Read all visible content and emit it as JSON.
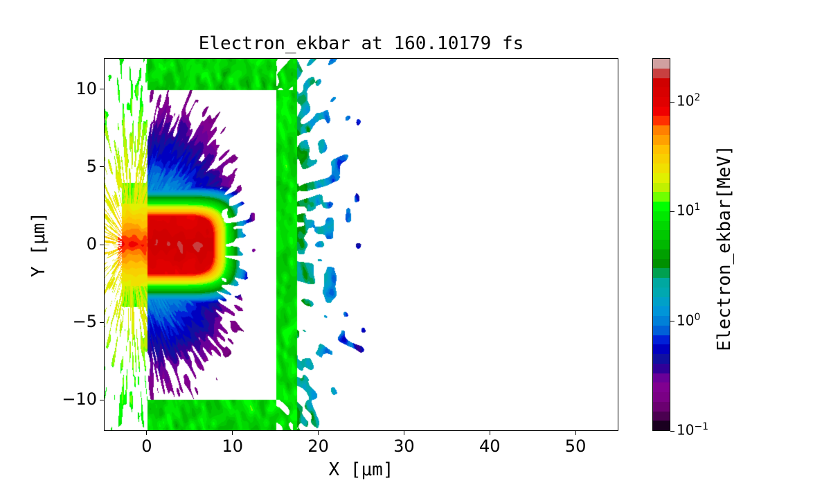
{
  "chart_data": {
    "type": "heatmap",
    "title": "Electron_ekbar at 160.10179 fs",
    "xlabel": "X [μm]",
    "ylabel": "Y [μm]",
    "xlim": [
      -5,
      55
    ],
    "ylim": [
      -12,
      12
    ],
    "xticks": [
      0,
      10,
      20,
      30,
      40,
      50
    ],
    "xtick_labels": [
      "0",
      "10",
      "20",
      "30",
      "40",
      "50"
    ],
    "yticks": [
      -10,
      -5,
      0,
      5,
      10
    ],
    "ytick_labels": [
      "−10",
      "−5",
      "0",
      "5",
      "10"
    ],
    "colorbar": {
      "label": "Electron_ekbar[MeV]",
      "scale": "log",
      "range": [
        0.1,
        250
      ],
      "ticks": [
        {
          "value": 0.1,
          "base": "10",
          "exp": "−1"
        },
        {
          "value": 1,
          "base": "10",
          "exp": "0"
        },
        {
          "value": 10,
          "base": "10",
          "exp": "1"
        },
        {
          "value": 100,
          "base": "10",
          "exp": "2"
        }
      ],
      "colors": [
        "#1a0020",
        "#4a0050",
        "#6a0070",
        "#7a0085",
        "#800090",
        "#6a0098",
        "#300098",
        "#1010a0",
        "#0000c0",
        "#0020d8",
        "#0060d8",
        "#0080d8",
        "#0095d8",
        "#00a0c8",
        "#00a8b0",
        "#00a8a0",
        "#00a050",
        "#009000",
        "#00a000",
        "#00b800",
        "#00c800",
        "#00d800",
        "#00e800",
        "#00ff00",
        "#70ff00",
        "#c0f000",
        "#e0f000",
        "#f0e000",
        "#f8d000",
        "#ffc000",
        "#ffa000",
        "#ff8000",
        "#ff3000",
        "#f00000",
        "#e00000",
        "#d80000",
        "#d00000",
        "#c84040",
        "#d0a0a0"
      ]
    },
    "features": {
      "target_box_um": {
        "x": [
          0,
          15
        ],
        "y": [
          -10,
          10
        ]
      },
      "hot_core_um": {
        "x": [
          -1,
          7.5
        ],
        "y": [
          -1.8,
          1.8
        ],
        "ekbar_MeV": 150
      }
    },
    "grid": false,
    "legend": "none"
  }
}
